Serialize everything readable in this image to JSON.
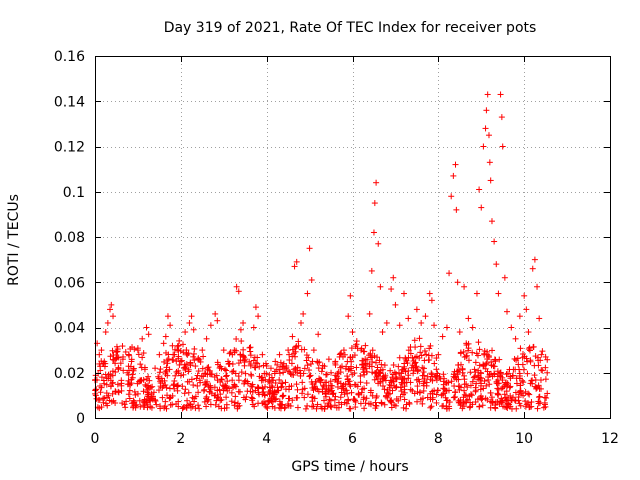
{
  "chart_data": {
    "type": "scatter",
    "title": "Day 319 of 2021, Rate Of TEC Index for receiver pots",
    "xlabel": "GPS time / hours",
    "ylabel": "ROTI / TECUs",
    "xlim": [
      0,
      12
    ],
    "ylim": [
      0,
      0.16
    ],
    "xticks": [
      "0",
      "2",
      "4",
      "6",
      "8",
      "10",
      "12"
    ],
    "yticks": [
      "0",
      "0.02",
      "0.04",
      "0.06",
      "0.08",
      "0.1",
      "0.12",
      "0.14",
      "0.16"
    ],
    "grid": true,
    "marker": "plus",
    "marker_color": "#ff0000",
    "series": [
      {
        "name": "ROTI",
        "points": [
          [
            0.05,
            0.033
          ],
          [
            0.1,
            0.028
          ],
          [
            0.15,
            0.03
          ],
          [
            0.25,
            0.038
          ],
          [
            0.3,
            0.042
          ],
          [
            0.35,
            0.048
          ],
          [
            0.38,
            0.05
          ],
          [
            0.42,
            0.045
          ],
          [
            0.55,
            0.022
          ],
          [
            0.65,
            0.026
          ],
          [
            0.75,
            0.02
          ],
          [
            0.85,
            0.025
          ],
          [
            1.0,
            0.03
          ],
          [
            1.1,
            0.035
          ],
          [
            1.2,
            0.04
          ],
          [
            1.25,
            0.037
          ],
          [
            1.4,
            0.022
          ],
          [
            1.5,
            0.028
          ],
          [
            1.6,
            0.033
          ],
          [
            1.65,
            0.036
          ],
          [
            1.7,
            0.045
          ],
          [
            1.75,
            0.041
          ],
          [
            1.85,
            0.028
          ],
          [
            1.95,
            0.032
          ],
          [
            2.0,
            0.025
          ],
          [
            2.1,
            0.038
          ],
          [
            2.2,
            0.042
          ],
          [
            2.25,
            0.045
          ],
          [
            2.3,
            0.039
          ],
          [
            2.4,
            0.026
          ],
          [
            2.5,
            0.03
          ],
          [
            2.6,
            0.035
          ],
          [
            2.7,
            0.041
          ],
          [
            2.8,
            0.046
          ],
          [
            2.85,
            0.043
          ],
          [
            3.0,
            0.03
          ],
          [
            3.1,
            0.025
          ],
          [
            3.2,
            0.028
          ],
          [
            3.3,
            0.058
          ],
          [
            3.35,
            0.056
          ],
          [
            3.4,
            0.039
          ],
          [
            3.45,
            0.042
          ],
          [
            3.5,
            0.026
          ],
          [
            3.6,
            0.031
          ],
          [
            3.7,
            0.04
          ],
          [
            3.75,
            0.049
          ],
          [
            3.8,
            0.045
          ],
          [
            3.9,
            0.028
          ],
          [
            4.0,
            0.023
          ],
          [
            4.1,
            0.022
          ],
          [
            4.2,
            0.025
          ],
          [
            4.3,
            0.028
          ],
          [
            4.4,
            0.024
          ],
          [
            4.5,
            0.03
          ],
          [
            4.6,
            0.036
          ],
          [
            4.65,
            0.067
          ],
          [
            4.7,
            0.069
          ],
          [
            4.8,
            0.042
          ],
          [
            4.85,
            0.046
          ],
          [
            4.95,
            0.055
          ],
          [
            5.0,
            0.075
          ],
          [
            5.05,
            0.061
          ],
          [
            5.1,
            0.03
          ],
          [
            5.2,
            0.037
          ],
          [
            5.3,
            0.022
          ],
          [
            5.45,
            0.026
          ],
          [
            5.5,
            0.02
          ],
          [
            5.6,
            0.025
          ],
          [
            5.7,
            0.027
          ],
          [
            5.8,
            0.03
          ],
          [
            5.9,
            0.045
          ],
          [
            5.95,
            0.054
          ],
          [
            6.0,
            0.038
          ],
          [
            6.1,
            0.034
          ],
          [
            6.2,
            0.03
          ],
          [
            6.3,
            0.032
          ],
          [
            6.4,
            0.046
          ],
          [
            6.45,
            0.065
          ],
          [
            6.5,
            0.082
          ],
          [
            6.52,
            0.095
          ],
          [
            6.55,
            0.104
          ],
          [
            6.6,
            0.077
          ],
          [
            6.65,
            0.058
          ],
          [
            6.7,
            0.038
          ],
          [
            6.8,
            0.042
          ],
          [
            6.9,
            0.057
          ],
          [
            6.95,
            0.062
          ],
          [
            7.0,
            0.05
          ],
          [
            7.1,
            0.041
          ],
          [
            7.2,
            0.055
          ],
          [
            7.3,
            0.044
          ],
          [
            7.5,
            0.048
          ],
          [
            7.6,
            0.042
          ],
          [
            7.7,
            0.045
          ],
          [
            7.8,
            0.055
          ],
          [
            7.85,
            0.052
          ],
          [
            7.9,
            0.041
          ],
          [
            8.0,
            0.028
          ],
          [
            8.1,
            0.036
          ],
          [
            8.2,
            0.04
          ],
          [
            8.25,
            0.064
          ],
          [
            8.3,
            0.098
          ],
          [
            8.35,
            0.107
          ],
          [
            8.4,
            0.112
          ],
          [
            8.42,
            0.092
          ],
          [
            8.45,
            0.06
          ],
          [
            8.5,
            0.038
          ],
          [
            8.6,
            0.058
          ],
          [
            8.65,
            0.033
          ],
          [
            8.7,
            0.044
          ],
          [
            8.8,
            0.04
          ],
          [
            8.9,
            0.055
          ],
          [
            8.95,
            0.101
          ],
          [
            9.0,
            0.093
          ],
          [
            9.05,
            0.12
          ],
          [
            9.1,
            0.128
          ],
          [
            9.12,
            0.136
          ],
          [
            9.15,
            0.143
          ],
          [
            9.18,
            0.125
          ],
          [
            9.2,
            0.113
          ],
          [
            9.22,
            0.105
          ],
          [
            9.25,
            0.087
          ],
          [
            9.3,
            0.078
          ],
          [
            9.35,
            0.068
          ],
          [
            9.4,
            0.055
          ],
          [
            9.45,
            0.143
          ],
          [
            9.48,
            0.133
          ],
          [
            9.5,
            0.12
          ],
          [
            9.55,
            0.062
          ],
          [
            9.6,
            0.047
          ],
          [
            9.7,
            0.04
          ],
          [
            9.8,
            0.035
          ],
          [
            9.9,
            0.045
          ],
          [
            10.0,
            0.054
          ],
          [
            10.05,
            0.048
          ],
          [
            10.1,
            0.038
          ],
          [
            10.2,
            0.066
          ],
          [
            10.25,
            0.07
          ],
          [
            10.3,
            0.058
          ],
          [
            10.35,
            0.044
          ],
          [
            10.4,
            0.028
          ],
          [
            10.5,
            0.027
          ]
        ],
        "min_value": 0.0
      }
    ]
  }
}
